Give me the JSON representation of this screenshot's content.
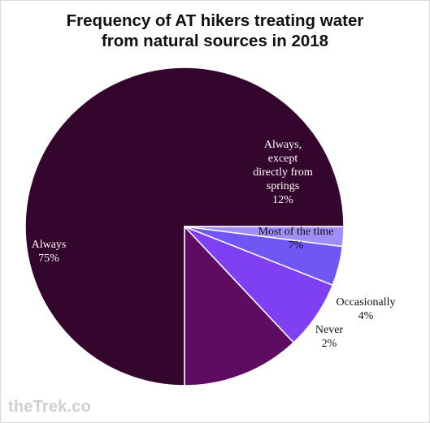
{
  "chart_data": {
    "type": "pie",
    "title": [
      "Frequency of AT hikers treating water",
      "from natural sources in 2018"
    ],
    "slices": [
      {
        "label": [
          "Always",
          "75%"
        ],
        "value": 75,
        "color": "#34062e",
        "text_color": "#ffffff"
      },
      {
        "label": [
          "Always,",
          "except",
          "directly from",
          "springs",
          "12%"
        ],
        "value": 12,
        "color": "#5e0c61",
        "text_color": "#ffffff"
      },
      {
        "label": [
          "Most of the time",
          "7%"
        ],
        "value": 7,
        "color": "#7f3ff2",
        "text_color": "#111111"
      },
      {
        "label": [
          "Occasionally",
          "4%"
        ],
        "value": 4,
        "color": "#6f57f4",
        "text_color": "#111111"
      },
      {
        "label": [
          "Never",
          "2%"
        ],
        "value": 2,
        "color": "#9d8ff7",
        "text_color": "#111111"
      }
    ]
  },
  "watermark": "theTrek.co"
}
